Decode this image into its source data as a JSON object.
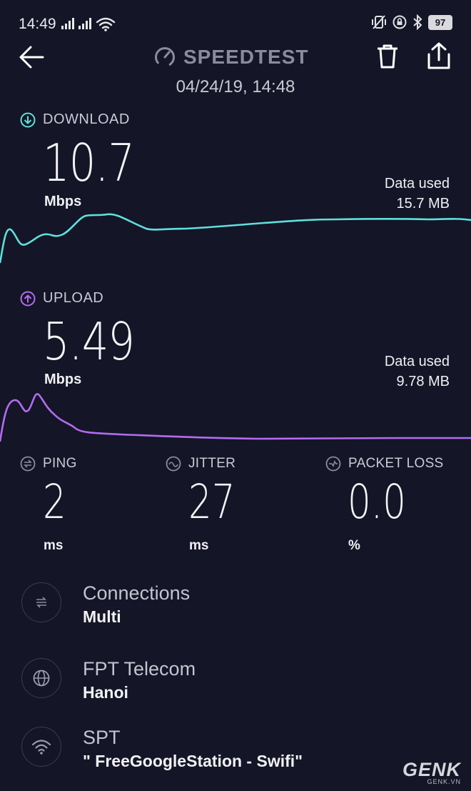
{
  "status_bar": {
    "time": "14:49",
    "battery": "97"
  },
  "header": {
    "title": "SPEEDTEST",
    "date": "04/24/19, 14:48"
  },
  "download": {
    "label": "DOWNLOAD",
    "value": "10.7",
    "unit": "Mbps",
    "data_used_label": "Data used",
    "data_used_value": "15.7 MB",
    "color": "#5ee0dd"
  },
  "upload": {
    "label": "UPLOAD",
    "value": "5.49",
    "unit": "Mbps",
    "data_used_label": "Data used",
    "data_used_value": "9.78 MB",
    "color": "#b36cf0"
  },
  "metrics": {
    "ping": {
      "label": "PING",
      "value": "2",
      "unit": "ms"
    },
    "jitter": {
      "label": "JITTER",
      "value": "27",
      "unit": "ms"
    },
    "packet_loss": {
      "label": "PACKET LOSS",
      "value": "0.0",
      "unit": "%"
    }
  },
  "info": {
    "connections": {
      "title": "Connections",
      "value": "Multi",
      "icon": "connections-icon"
    },
    "provider": {
      "title": "FPT Telecom",
      "value": "Hanoi",
      "icon": "globe-icon"
    },
    "network": {
      "title": "SPT",
      "value": "\" FreeGoogleStation - Swifi\"",
      "icon": "wifi-icon"
    }
  },
  "watermark": {
    "main": "GENK",
    "sub": "GENK.VN"
  }
}
